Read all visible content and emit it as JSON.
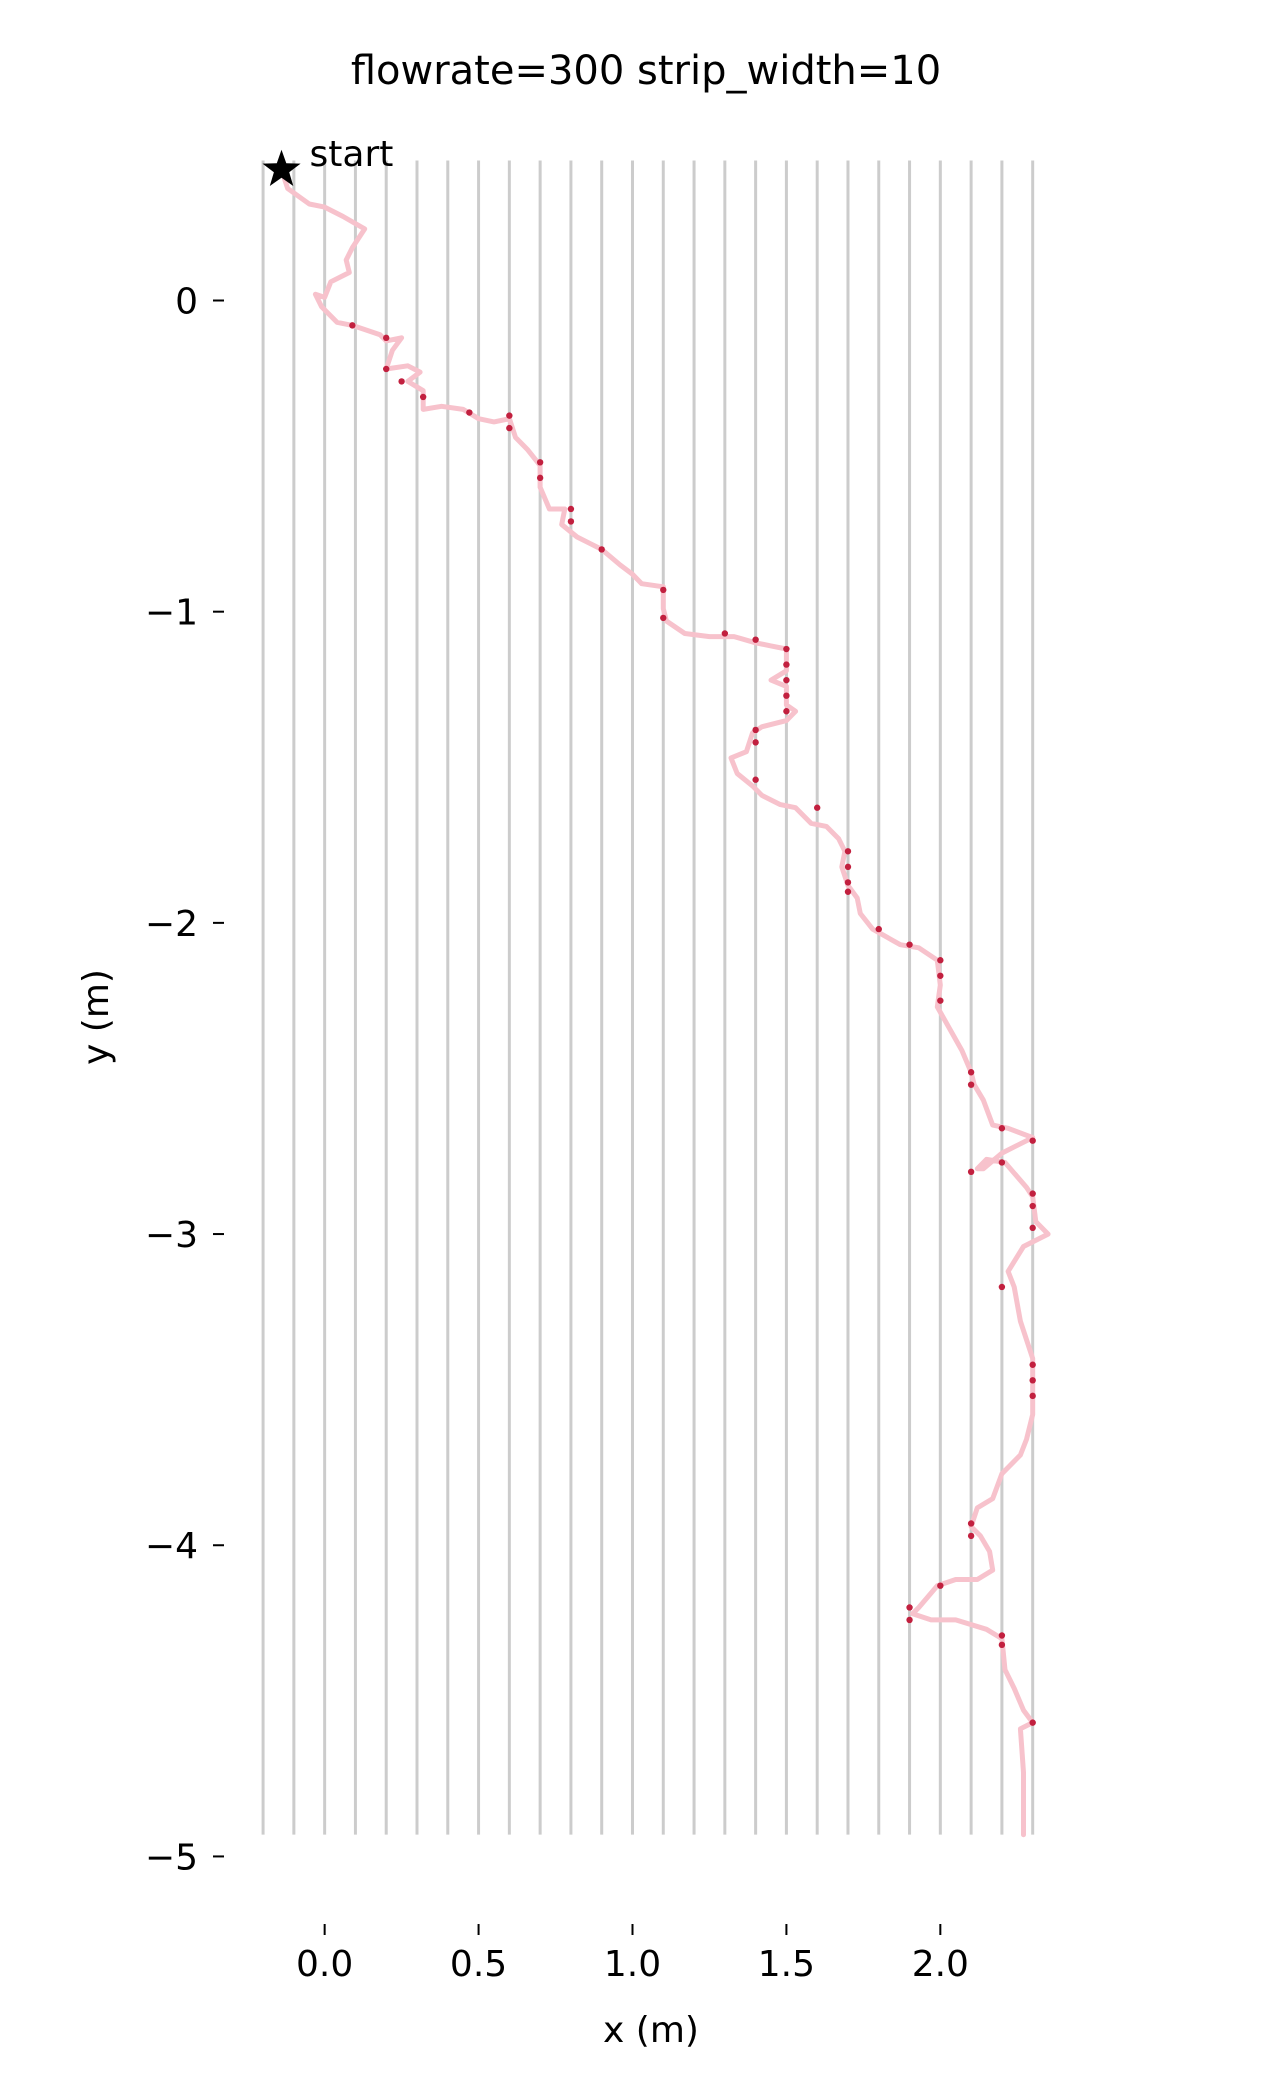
{
  "chart_data": {
    "type": "line",
    "title": "flowrate=300 strip_width=10",
    "xlabel": "x (m)",
    "ylabel": "y (m)",
    "xlim": [
      -0.21,
      2.34
    ],
    "ylim": [
      -5.14,
      0.58
    ],
    "xticks": [
      0.0,
      0.5,
      1.0,
      1.5,
      2.0
    ],
    "xtick_labels": [
      "0.0",
      "0.5",
      "1.0",
      "1.5",
      "2.0"
    ],
    "yticks": [
      0,
      -1,
      -2,
      -3,
      -4,
      -5
    ],
    "ytick_labels": [
      "0",
      "−1",
      "−2",
      "−3",
      "−4",
      "−5"
    ],
    "grid": "vertical strip lines",
    "strip_lines": {
      "x": [
        -0.2,
        -0.1,
        0.0,
        0.1,
        0.2,
        0.3,
        0.4,
        0.5,
        0.6,
        0.7,
        0.8,
        0.9,
        1.0,
        1.1,
        1.2,
        1.3,
        1.4,
        1.5,
        1.6,
        1.7,
        1.8,
        1.9,
        2.0,
        2.1,
        2.2,
        2.3
      ],
      "y_range": [
        -4.93,
        0.45
      ],
      "color": "#cccccc"
    },
    "start_marker": {
      "x": -0.14,
      "y": 0.42,
      "label": "start",
      "color": "#000000"
    },
    "path": {
      "color": "#f7c2cc",
      "points": [
        [
          -0.14,
          0.42
        ],
        [
          -0.12,
          0.36
        ],
        [
          -0.05,
          0.31
        ],
        [
          0.0,
          0.3
        ],
        [
          0.06,
          0.27
        ],
        [
          0.13,
          0.23
        ],
        [
          0.09,
          0.17
        ],
        [
          0.07,
          0.13
        ],
        [
          0.08,
          0.09
        ],
        [
          0.02,
          0.06
        ],
        [
          0.0,
          0.01
        ],
        [
          -0.03,
          0.02
        ],
        [
          -0.01,
          -0.02
        ],
        [
          0.04,
          -0.07
        ],
        [
          0.09,
          -0.08
        ],
        [
          0.18,
          -0.11
        ],
        [
          0.2,
          -0.13
        ],
        [
          0.25,
          -0.12
        ],
        [
          0.22,
          -0.16
        ],
        [
          0.2,
          -0.22
        ],
        [
          0.27,
          -0.21
        ],
        [
          0.31,
          -0.23
        ],
        [
          0.27,
          -0.26
        ],
        [
          0.32,
          -0.29
        ],
        [
          0.32,
          -0.35
        ],
        [
          0.38,
          -0.34
        ],
        [
          0.45,
          -0.35
        ],
        [
          0.5,
          -0.38
        ],
        [
          0.55,
          -0.39
        ],
        [
          0.6,
          -0.38
        ],
        [
          0.62,
          -0.44
        ],
        [
          0.66,
          -0.48
        ],
        [
          0.7,
          -0.53
        ],
        [
          0.7,
          -0.6
        ],
        [
          0.73,
          -0.67
        ],
        [
          0.78,
          -0.67
        ],
        [
          0.77,
          -0.72
        ],
        [
          0.82,
          -0.76
        ],
        [
          0.86,
          -0.78
        ],
        [
          0.9,
          -0.8
        ],
        [
          0.96,
          -0.85
        ],
        [
          1.0,
          -0.88
        ],
        [
          1.03,
          -0.91
        ],
        [
          1.1,
          -0.92
        ],
        [
          1.1,
          -0.99
        ],
        [
          1.11,
          -1.03
        ],
        [
          1.17,
          -1.07
        ],
        [
          1.25,
          -1.08
        ],
        [
          1.33,
          -1.08
        ],
        [
          1.4,
          -1.1
        ],
        [
          1.45,
          -1.11
        ],
        [
          1.5,
          -1.12
        ],
        [
          1.5,
          -1.19
        ],
        [
          1.45,
          -1.22
        ],
        [
          1.5,
          -1.24
        ],
        [
          1.5,
          -1.3
        ],
        [
          1.53,
          -1.32
        ],
        [
          1.5,
          -1.35
        ],
        [
          1.42,
          -1.37
        ],
        [
          1.39,
          -1.39
        ],
        [
          1.37,
          -1.45
        ],
        [
          1.32,
          -1.47
        ],
        [
          1.34,
          -1.52
        ],
        [
          1.39,
          -1.56
        ],
        [
          1.42,
          -1.59
        ],
        [
          1.48,
          -1.62
        ],
        [
          1.53,
          -1.63
        ],
        [
          1.58,
          -1.68
        ],
        [
          1.63,
          -1.69
        ],
        [
          1.67,
          -1.73
        ],
        [
          1.69,
          -1.77
        ],
        [
          1.68,
          -1.82
        ],
        [
          1.7,
          -1.88
        ],
        [
          1.73,
          -1.92
        ],
        [
          1.74,
          -1.97
        ],
        [
          1.78,
          -2.02
        ],
        [
          1.87,
          -2.07
        ],
        [
          1.93,
          -2.08
        ],
        [
          1.99,
          -2.12
        ],
        [
          2.0,
          -2.2
        ],
        [
          1.99,
          -2.27
        ],
        [
          2.03,
          -2.34
        ],
        [
          2.07,
          -2.41
        ],
        [
          2.1,
          -2.48
        ],
        [
          2.11,
          -2.52
        ],
        [
          2.14,
          -2.57
        ],
        [
          2.17,
          -2.65
        ],
        [
          2.22,
          -2.66
        ],
        [
          2.3,
          -2.69
        ],
        [
          2.2,
          -2.74
        ],
        [
          2.14,
          -2.79
        ],
        [
          2.12,
          -2.79
        ],
        [
          2.15,
          -2.76
        ],
        [
          2.21,
          -2.77
        ],
        [
          2.28,
          -2.85
        ],
        [
          2.3,
          -2.88
        ],
        [
          2.31,
          -2.96
        ],
        [
          2.35,
          -3.0
        ],
        [
          2.27,
          -3.04
        ],
        [
          2.22,
          -3.12
        ],
        [
          2.24,
          -3.17
        ],
        [
          2.26,
          -3.28
        ],
        [
          2.3,
          -3.4
        ],
        [
          2.3,
          -3.5
        ],
        [
          2.3,
          -3.58
        ],
        [
          2.28,
          -3.66
        ],
        [
          2.26,
          -3.71
        ],
        [
          2.2,
          -3.77
        ],
        [
          2.17,
          -3.85
        ],
        [
          2.12,
          -3.88
        ],
        [
          2.1,
          -3.94
        ],
        [
          2.13,
          -3.97
        ],
        [
          2.16,
          -4.02
        ],
        [
          2.17,
          -4.08
        ],
        [
          2.12,
          -4.11
        ],
        [
          2.05,
          -4.11
        ],
        [
          1.99,
          -4.13
        ],
        [
          1.93,
          -4.2
        ],
        [
          1.91,
          -4.22
        ],
        [
          1.97,
          -4.24
        ],
        [
          2.05,
          -4.24
        ],
        [
          2.15,
          -4.27
        ],
        [
          2.2,
          -4.3
        ],
        [
          2.21,
          -4.4
        ],
        [
          2.24,
          -4.46
        ],
        [
          2.27,
          -4.53
        ],
        [
          2.3,
          -4.57
        ],
        [
          2.26,
          -4.59
        ],
        [
          2.27,
          -4.73
        ],
        [
          2.27,
          -4.93
        ]
      ]
    },
    "dots": {
      "color": "#c2203f",
      "points": [
        [
          0.09,
          -0.08
        ],
        [
          0.2,
          -0.12
        ],
        [
          0.2,
          -0.22
        ],
        [
          0.25,
          -0.26
        ],
        [
          0.32,
          -0.31
        ],
        [
          0.47,
          -0.36
        ],
        [
          0.6,
          -0.37
        ],
        [
          0.6,
          -0.41
        ],
        [
          0.7,
          -0.52
        ],
        [
          0.7,
          -0.57
        ],
        [
          0.8,
          -0.67
        ],
        [
          0.8,
          -0.71
        ],
        [
          0.9,
          -0.8
        ],
        [
          1.1,
          -0.93
        ],
        [
          1.1,
          -1.02
        ],
        [
          1.3,
          -1.07
        ],
        [
          1.4,
          -1.09
        ],
        [
          1.5,
          -1.12
        ],
        [
          1.5,
          -1.17
        ],
        [
          1.5,
          -1.22
        ],
        [
          1.5,
          -1.27
        ],
        [
          1.5,
          -1.32
        ],
        [
          1.4,
          -1.38
        ],
        [
          1.4,
          -1.42
        ],
        [
          1.4,
          -1.54
        ],
        [
          1.6,
          -1.63
        ],
        [
          1.7,
          -1.77
        ],
        [
          1.7,
          -1.82
        ],
        [
          1.7,
          -1.87
        ],
        [
          1.7,
          -1.9
        ],
        [
          1.8,
          -2.02
        ],
        [
          1.9,
          -2.07
        ],
        [
          2.0,
          -2.12
        ],
        [
          2.0,
          -2.17
        ],
        [
          2.0,
          -2.25
        ],
        [
          2.1,
          -2.48
        ],
        [
          2.1,
          -2.52
        ],
        [
          2.2,
          -2.66
        ],
        [
          2.3,
          -2.7
        ],
        [
          2.1,
          -2.8
        ],
        [
          2.2,
          -2.77
        ],
        [
          2.3,
          -2.87
        ],
        [
          2.3,
          -2.91
        ],
        [
          2.3,
          -2.98
        ],
        [
          2.2,
          -3.17
        ],
        [
          2.3,
          -3.42
        ],
        [
          2.3,
          -3.47
        ],
        [
          2.3,
          -3.52
        ],
        [
          2.1,
          -3.93
        ],
        [
          2.1,
          -3.97
        ],
        [
          2.0,
          -4.13
        ],
        [
          1.9,
          -4.2
        ],
        [
          1.9,
          -4.24
        ],
        [
          2.2,
          -4.29
        ],
        [
          2.2,
          -4.32
        ],
        [
          2.3,
          -4.57
        ]
      ]
    }
  }
}
